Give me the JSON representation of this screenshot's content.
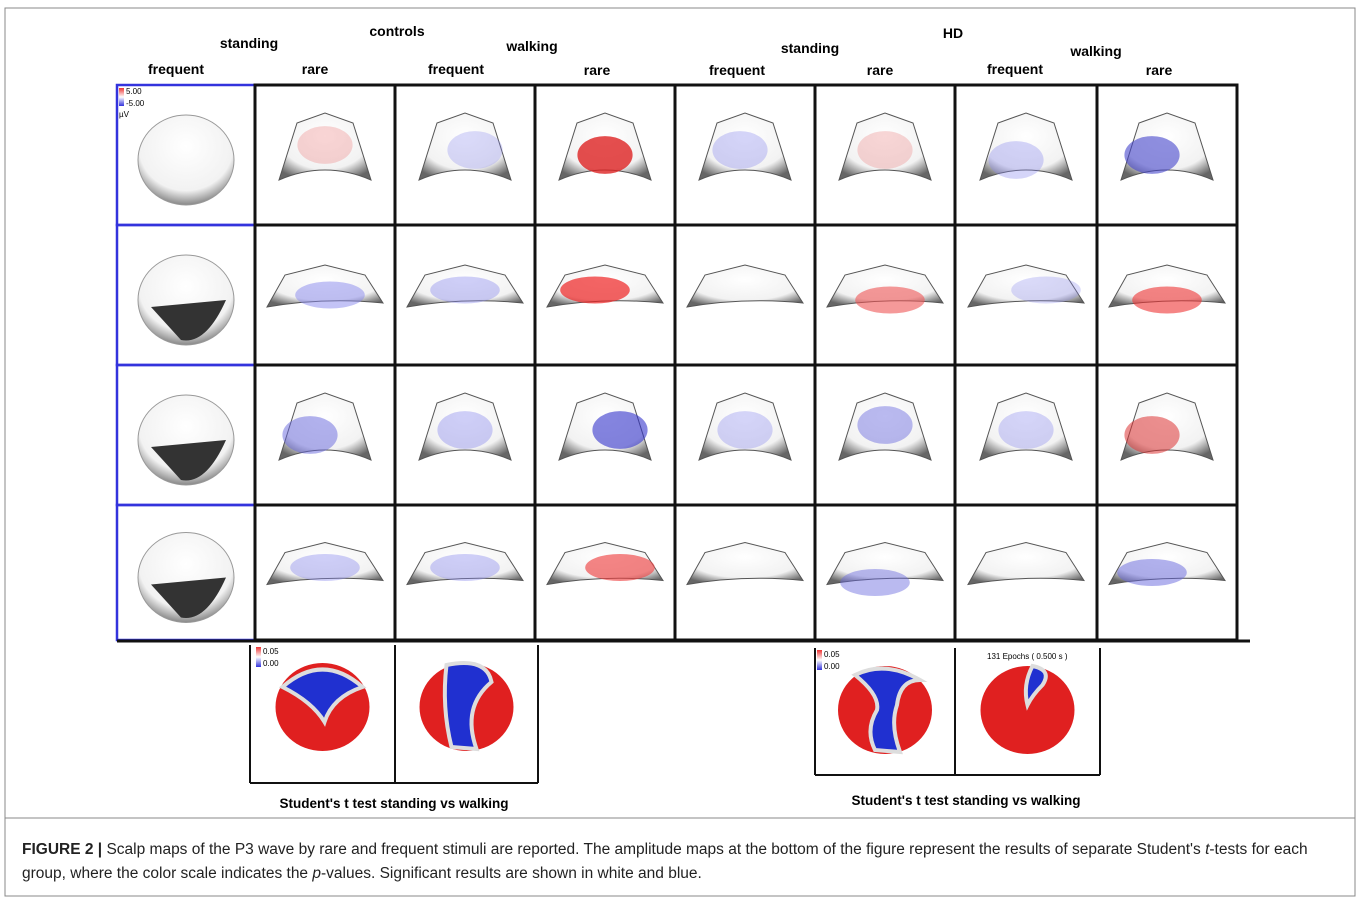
{
  "groups": [
    {
      "title": "controls",
      "conditions": [
        {
          "title": "standing",
          "stimuli": [
            "frequent",
            "rare"
          ]
        },
        {
          "title": "walking",
          "stimuli": [
            "frequent",
            "rare"
          ]
        }
      ]
    },
    {
      "title": "HD",
      "conditions": [
        {
          "title": "standing",
          "stimuli": [
            "frequent",
            "rare"
          ]
        },
        {
          "title": "walking",
          "stimuli": [
            "frequent",
            "rare"
          ]
        }
      ]
    }
  ],
  "colorbar": {
    "max": "5.00",
    "min": "-5.00",
    "unit": "µV"
  },
  "ttests": [
    {
      "colorbar": {
        "max": "0.05",
        "min": "0.00"
      },
      "caption": "Student's t test standing vs  walking"
    },
    {
      "colorbar": {
        "max": "0.05",
        "min": "0.00"
      },
      "epochs": "131 Epochs ( 0.500 s )",
      "caption": "Student's t test standing vs  walking"
    }
  ],
  "caption": {
    "label": "FIGURE 2 |",
    "parts": [
      "Scalp maps of the P3 wave by rare and frequent stimuli are reported. The amplitude maps at the bottom of the figure represent the results of separate Student's ",
      "t",
      "-tests for each group, where the color scale indicates the ",
      "p",
      "-values. Significant results are shown in white and blue."
    ]
  }
}
